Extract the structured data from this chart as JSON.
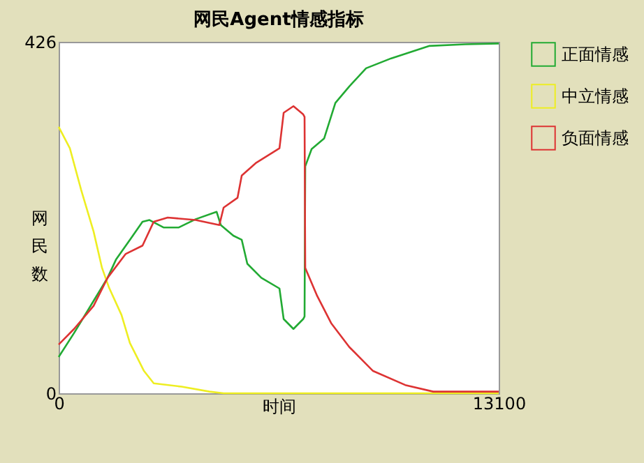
{
  "chart_data": {
    "type": "line",
    "title": "网民Agent情感指标",
    "xlabel": "时间",
    "ylabel": "网民数",
    "xlim": [
      0,
      13100
    ],
    "xticks": [
      0,
      13100
    ],
    "ylim": [
      0,
      426
    ],
    "yticks": [
      0,
      426
    ],
    "grid": false,
    "legend": "right",
    "series": [
      {
        "name": "正面情感",
        "color": "#22aa33",
        "x": [
          0,
          458,
          1040,
          1456,
          1706,
          2120,
          2496,
          2704,
          3120,
          3578,
          4077,
          4701,
          4826,
          5200,
          5450,
          5616,
          6032,
          6573,
          6698,
          6989,
          7280,
          7320,
          7340,
          7530,
          7904,
          8237,
          8653,
          9152,
          9901,
          11024,
          12106,
          13100
        ],
        "values": [
          44,
          73,
          112,
          140,
          162,
          186,
          208,
          210,
          201,
          201,
          211,
          220,
          204,
          191,
          186,
          157,
          140,
          127,
          90,
          78,
          90,
          93,
          275,
          296,
          309,
          352,
          372,
          394,
          406,
          421,
          423,
          424
        ]
      },
      {
        "name": "中立情感",
        "color": "#eeee22",
        "x": [
          0,
          333,
          666,
          1040,
          1290,
          1500,
          1870,
          2120,
          2540,
          2830,
          3660,
          4490,
          4910,
          13100
        ],
        "values": [
          323,
          297,
          247,
          196,
          152,
          128,
          95,
          61,
          27,
          12,
          8,
          2,
          0,
          0
        ]
      },
      {
        "name": "负面情感",
        "color": "#dd3333",
        "x": [
          0,
          458,
          1040,
          1456,
          1997,
          2496,
          2830,
          3245,
          4077,
          4784,
          4910,
          5325,
          5450,
          5866,
          6573,
          6698,
          6989,
          7280,
          7320,
          7340,
          7696,
          8112,
          8653,
          9360,
          10317,
          11149,
          13100
        ],
        "values": [
          59,
          78,
          106,
          140,
          169,
          179,
          208,
          213,
          210,
          204,
          225,
          237,
          264,
          279,
          297,
          340,
          348,
          338,
          335,
          152,
          118,
          85,
          56,
          27,
          10,
          2,
          2
        ]
      }
    ]
  }
}
